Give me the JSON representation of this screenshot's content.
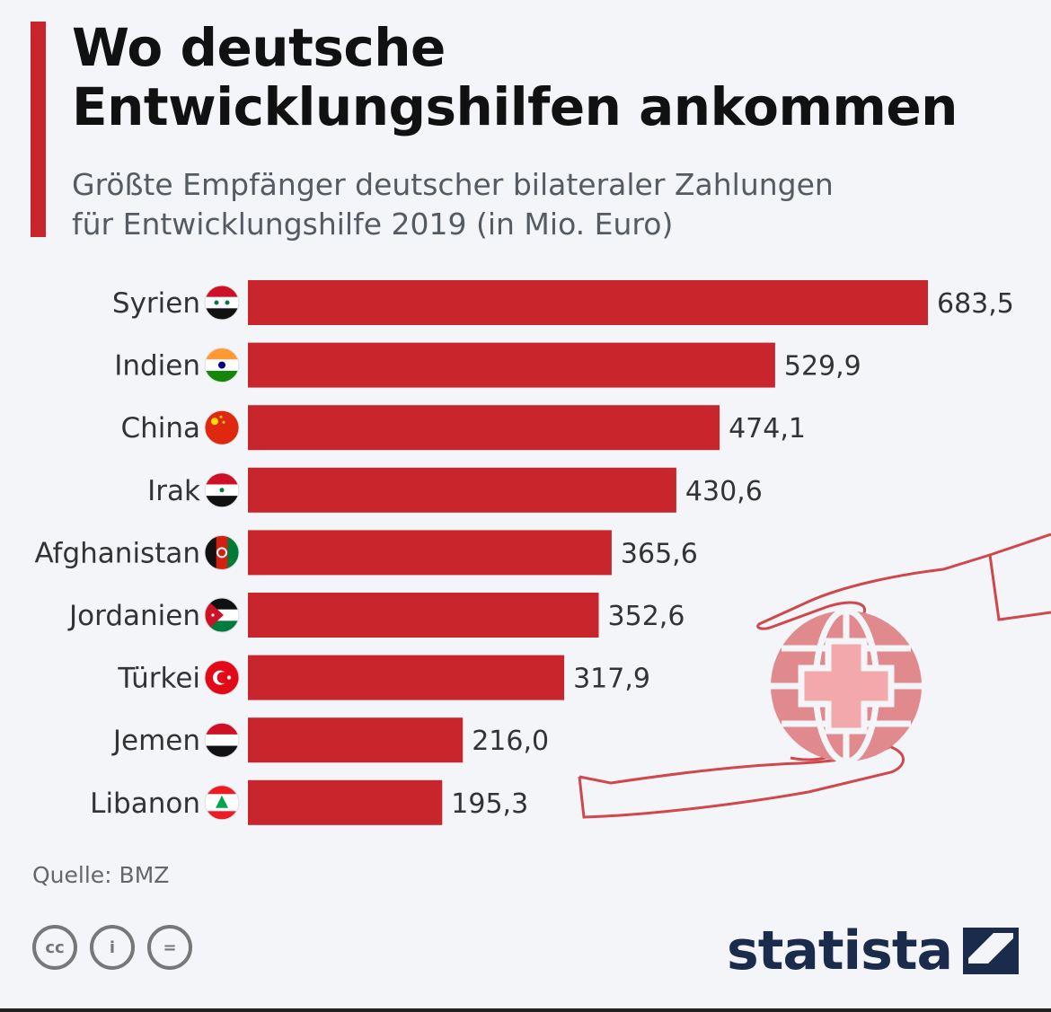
{
  "header": {
    "title_line1": "Wo deutsche",
    "title_line2": "Entwicklungshilfen ankommen",
    "subtitle_line1": "Größte Empfänger deutscher bilateraler Zahlungen",
    "subtitle_line2": "für Entwicklungshilfe 2019 (in Mio. Euro)"
  },
  "chart_data": {
    "type": "bar",
    "orientation": "horizontal",
    "title": "Wo deutsche Entwicklungshilfen ankommen",
    "subtitle": "Größte Empfänger deutscher bilateraler Zahlungen für Entwicklungshilfe 2019 (in Mio. Euro)",
    "categories": [
      "Syrien",
      "Indien",
      "China",
      "Irak",
      "Afghanistan",
      "Jordanien",
      "Türkei",
      "Jemen",
      "Libanon"
    ],
    "values": [
      683.5,
      529.9,
      474.1,
      430.6,
      365.6,
      352.6,
      317.9,
      216.0,
      195.3
    ],
    "value_labels": [
      "683,5",
      "529,9",
      "474,1",
      "430,6",
      "365,6",
      "352,6",
      "317,9",
      "216,0",
      "195,3"
    ],
    "flags": [
      "syria-flag-icon",
      "india-flag-icon",
      "china-flag-icon",
      "iraq-flag-icon",
      "afghanistan-flag-icon",
      "jordan-flag-icon",
      "turkey-flag-icon",
      "yemen-flag-icon",
      "lebanon-flag-icon"
    ],
    "xlim": [
      0,
      683.5
    ],
    "xlabel": "",
    "ylabel": "",
    "bar_color": "#c8262c",
    "grid": false,
    "legend": "none"
  },
  "footer": {
    "source": "Quelle: BMZ",
    "cc_labels": [
      "cc",
      "i",
      "="
    ],
    "logo": "statista"
  },
  "colors": {
    "accent": "#c8262c",
    "background": "#f3f5f9",
    "logo": "#1a2b4c"
  }
}
